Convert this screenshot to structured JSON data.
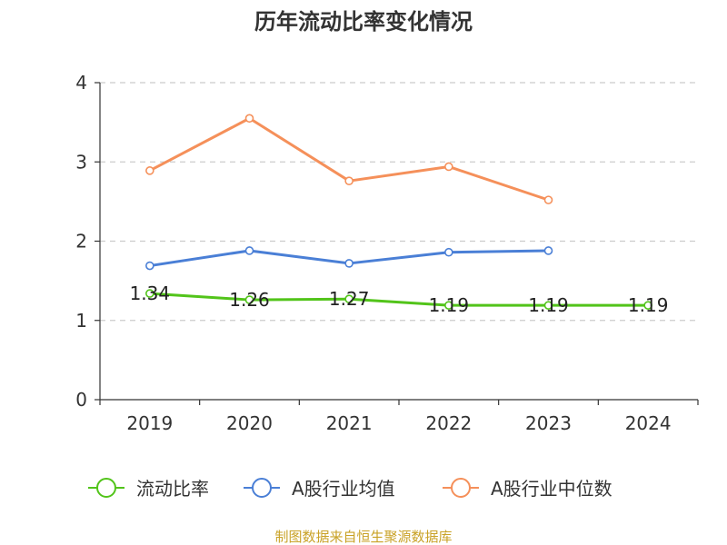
{
  "chart_data": {
    "type": "line",
    "title": "历年流动比率变化情况",
    "categories": [
      "2019",
      "2020",
      "2021",
      "2022",
      "2023",
      "2024"
    ],
    "ylim": [
      0,
      4
    ],
    "yticks": [
      0,
      1,
      2,
      3,
      4
    ],
    "grid": true,
    "legend_position": "bottom",
    "series": [
      {
        "name": "流动比率",
        "color": "#52c41a",
        "values": [
          1.34,
          1.26,
          1.27,
          1.19,
          1.19,
          1.19
        ],
        "labels": [
          "1.34",
          "1.26",
          "1.27",
          "1.19",
          "1.19",
          "1.19"
        ]
      },
      {
        "name": "A股行业均值",
        "color": "#4a7fd6",
        "values": [
          1.69,
          1.88,
          1.72,
          1.86,
          1.88,
          null
        ]
      },
      {
        "name": "A股行业中位数",
        "color": "#f5905a",
        "values": [
          2.89,
          3.55,
          2.76,
          2.94,
          2.52,
          null
        ]
      }
    ]
  },
  "source_text": "制图数据来自恒生聚源数据库"
}
